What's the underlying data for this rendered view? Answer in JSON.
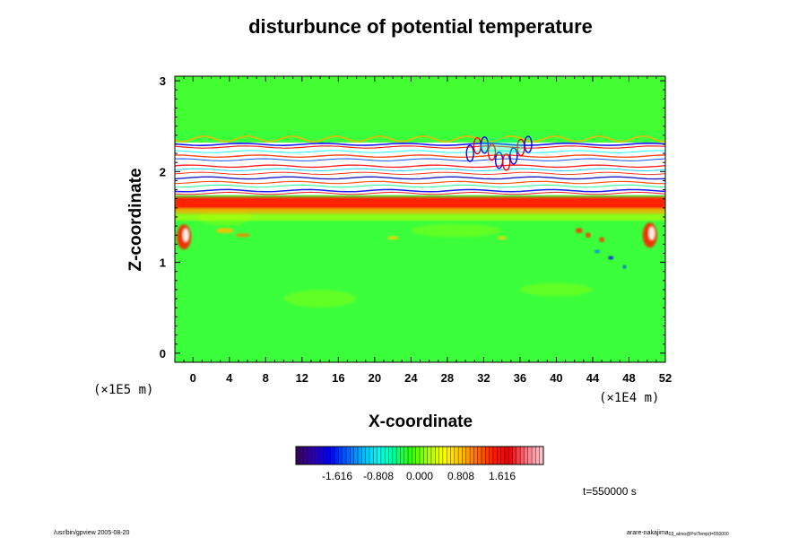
{
  "chart_data": {
    "type": "heatmap",
    "title": "disturbunce of potential temperature",
    "xlabel": "X-coordinate",
    "ylabel": "Z-coordinate",
    "x_scale_label": "(×1E4 m)",
    "y_scale_label": "(×1E5 m)",
    "xlim": [
      -2,
      52
    ],
    "ylim": [
      -0.1,
      3.05
    ],
    "x_ticks": [
      "0",
      "4",
      "8",
      "12",
      "16",
      "20",
      "24",
      "28",
      "32",
      "36",
      "40",
      "44",
      "48",
      "52"
    ],
    "y_ticks": [
      "0",
      "1",
      "2",
      "3"
    ],
    "colorbar": {
      "min": -2.424,
      "max": 2.424,
      "ticks": [
        "-1.616",
        "-0.808",
        "0.000",
        "0.808",
        "1.616"
      ],
      "colors": [
        "#3b0063",
        "#2a00b4",
        "#0000ff",
        "#0060ff",
        "#00b8ff",
        "#00ffee",
        "#00ff90",
        "#30ff00",
        "#a8ff00",
        "#ffff00",
        "#ffc000",
        "#ff7000",
        "#ff1e00",
        "#e80000",
        "#ff6f7a",
        "#ffc0c8"
      ]
    },
    "field_description": "Mostly near-zero (green) field; warm red layer near z=1.65; saturated white/banded layers between z=1.75 and z=2.35; wave-like anomalies near x=31-37 at z~2.2; scattered features near x=0, 42-50 at z~1.0-1.4",
    "time_label": "t=550000 s"
  },
  "footer": {
    "left": "/usr/bin/gpview 2005-08-20",
    "right": "arare-nakajima",
    "right_small": "03_atmo@PotTemp(t=550000"
  }
}
